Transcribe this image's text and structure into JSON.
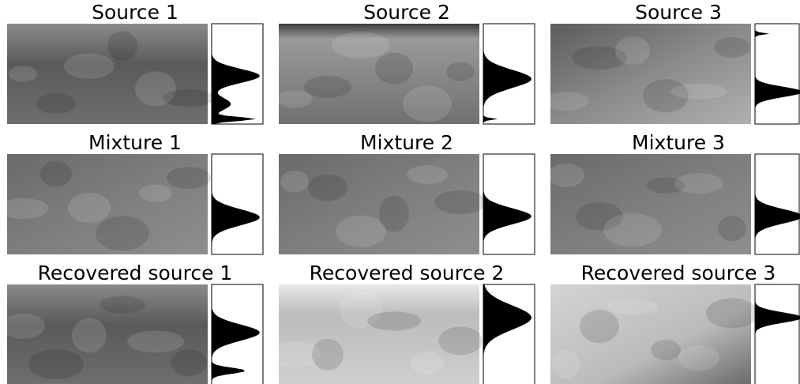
{
  "panels": [
    {
      "title": "Source 1"
    },
    {
      "title": "Source 2"
    },
    {
      "title": "Source 3"
    },
    {
      "title": "Mixture 1"
    },
    {
      "title": "Mixture 2"
    },
    {
      "title": "Mixture 3"
    },
    {
      "title": "Recovered source 1"
    },
    {
      "title": "Recovered source 2"
    },
    {
      "title": "Recovered source 3"
    }
  ]
}
